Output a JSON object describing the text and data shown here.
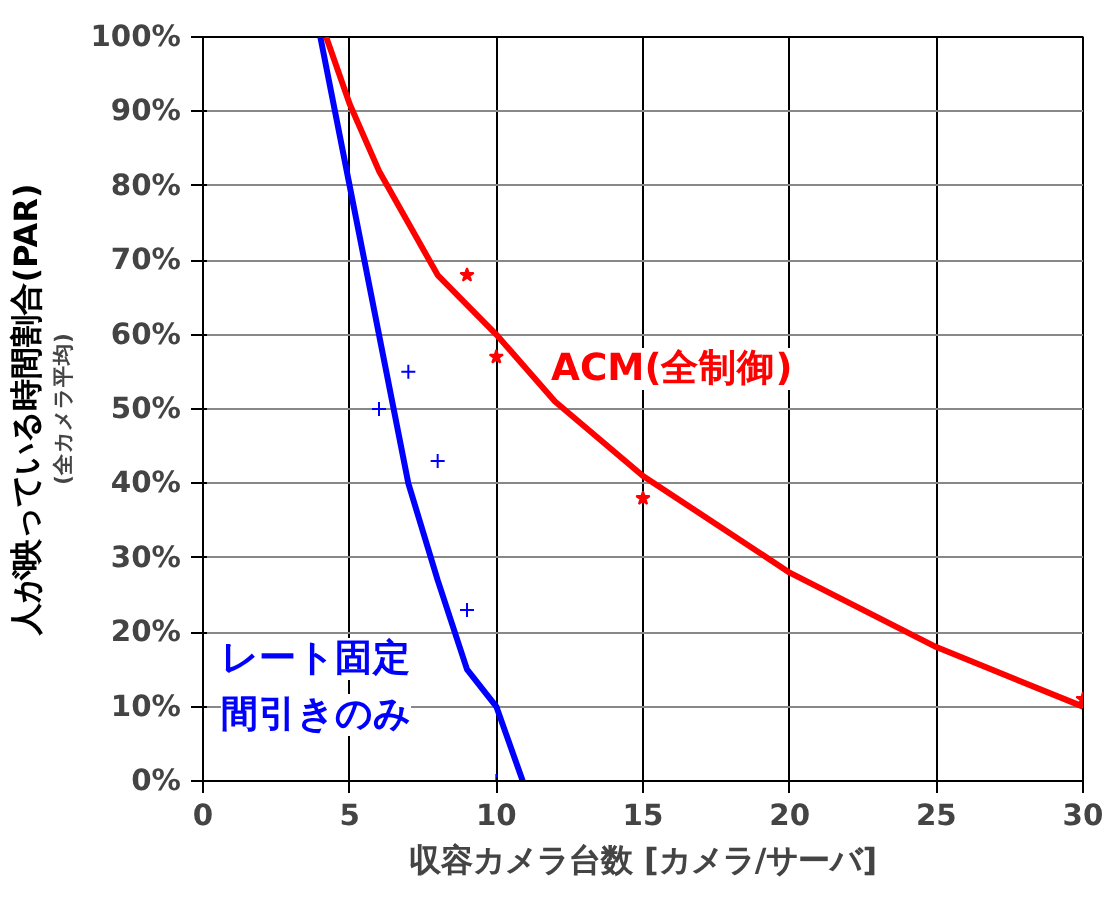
{
  "chart_data": {
    "type": "scatter",
    "xlabel": "収容カメラ台数 [カメラ/サーバ]",
    "ylabel": "人が映っている時間割合(PAR)",
    "annotations": [
      "(全カメラ平均)"
    ],
    "xlim": [
      0,
      30
    ],
    "xticks": [
      0,
      5,
      10,
      15,
      20,
      25,
      30
    ],
    "ylim": [
      0,
      100
    ],
    "yticks": [
      {
        "value": 0,
        "label": "0%"
      },
      {
        "value": 10,
        "label": "10%"
      },
      {
        "value": 20,
        "label": "20%"
      },
      {
        "value": 30,
        "label": "30%"
      },
      {
        "value": 40,
        "label": "40%"
      },
      {
        "value": 50,
        "label": "50%"
      },
      {
        "value": 60,
        "label": "60%"
      },
      {
        "value": 70,
        "label": "70%"
      },
      {
        "value": 80,
        "label": "80%"
      },
      {
        "value": 90,
        "label": "90%"
      },
      {
        "value": 100,
        "label": "100%"
      }
    ],
    "grid": true,
    "series": [
      {
        "type": "line",
        "name": "ACM(全制御)",
        "color": "#ff0000",
        "x": [
          4.2,
          5,
          6,
          7,
          8,
          10,
          12,
          15,
          20,
          25,
          30
        ],
        "values": [
          100,
          91,
          82,
          75,
          68,
          60,
          51,
          41,
          28,
          18,
          10
        ]
      },
      {
        "type": "line",
        "name": "レート固定間引きのみ",
        "color": "#0000ff",
        "x": [
          4,
          5,
          6,
          7,
          8,
          9,
          10,
          10.9
        ],
        "values": [
          100,
          80,
          60,
          40,
          27,
          15,
          10,
          0
        ]
      },
      {
        "marker": "star",
        "color": "#ff0000",
        "x": [
          9,
          10,
          15,
          30
        ],
        "values": [
          68,
          57,
          38,
          11
        ]
      },
      {
        "marker": "cross",
        "color": "#0000ff",
        "x": [
          6,
          7,
          8,
          9,
          10
        ],
        "values": [
          50,
          55,
          43,
          23,
          0
        ]
      }
    ]
  }
}
